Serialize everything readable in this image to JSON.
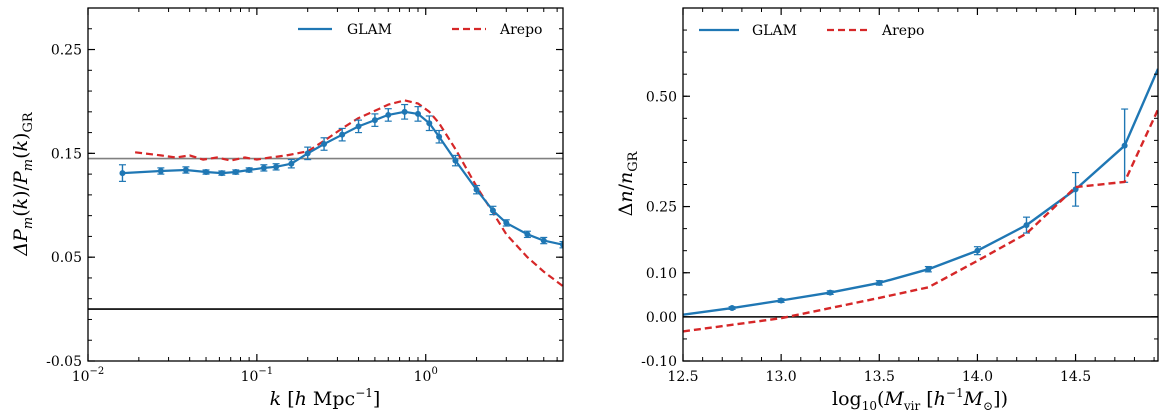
{
  "chart_data": [
    {
      "type": "line",
      "xlabel": "k [h Mpc⁻¹]",
      "xlabel_parts": [
        "k",
        "[",
        "h",
        "Mpc",
        "−1",
        "]"
      ],
      "ylabel": "ΔP_m(k)/P_m(k)_GR",
      "xscale": "log",
      "xlim": [
        0.01,
        6.5
      ],
      "ylim": [
        -0.05,
        0.29
      ],
      "xticks": [
        {
          "value": 0.01,
          "base": "10",
          "exp": "−2"
        },
        {
          "value": 0.1,
          "base": "10",
          "exp": "−1"
        },
        {
          "value": 1,
          "base": "10",
          "exp": "0"
        }
      ],
      "yticks": [
        {
          "value": -0.05,
          "label": "-0.05"
        },
        {
          "value": 0.05,
          "label": "0.05"
        },
        {
          "value": 0.15,
          "label": "0.15"
        },
        {
          "value": 0.25,
          "label": "0.25"
        }
      ],
      "legend": {
        "position": "top-right",
        "entries": [
          "GLAM",
          "Arepo"
        ]
      },
      "hlines": [
        {
          "y": 0.145,
          "color": "#808080"
        },
        {
          "y": 0.0,
          "color": "#000000"
        }
      ],
      "series": [
        {
          "name": "GLAM",
          "color": "#1f77b4",
          "style": "solid",
          "errorbars": true,
          "x": [
            0.016,
            0.027,
            0.038,
            0.05,
            0.062,
            0.075,
            0.09,
            0.11,
            0.13,
            0.16,
            0.2,
            0.25,
            0.32,
            0.4,
            0.5,
            0.6,
            0.75,
            0.9,
            1.05,
            1.2,
            1.5,
            2.0,
            2.5,
            3.0,
            4.0,
            5.0,
            6.5
          ],
          "y": [
            0.131,
            0.133,
            0.134,
            0.132,
            0.131,
            0.132,
            0.134,
            0.136,
            0.137,
            0.14,
            0.15,
            0.159,
            0.168,
            0.176,
            0.182,
            0.187,
            0.19,
            0.188,
            0.179,
            0.166,
            0.143,
            0.115,
            0.095,
            0.083,
            0.072,
            0.066,
            0.062
          ],
          "yerr": [
            0.008,
            0.003,
            0.003,
            0.002,
            0.002,
            0.002,
            0.002,
            0.003,
            0.003,
            0.004,
            0.006,
            0.006,
            0.006,
            0.006,
            0.006,
            0.006,
            0.007,
            0.007,
            0.007,
            0.006,
            0.005,
            0.004,
            0.004,
            0.003,
            0.003,
            0.003,
            0.003
          ]
        },
        {
          "name": "Arepo",
          "color": "#d62728",
          "style": "dashed",
          "x": [
            0.019,
            0.027,
            0.033,
            0.04,
            0.048,
            0.058,
            0.07,
            0.085,
            0.1,
            0.12,
            0.15,
            0.2,
            0.25,
            0.32,
            0.4,
            0.5,
            0.6,
            0.75,
            0.9,
            1.05,
            1.2,
            1.5,
            2.0,
            2.5,
            3.0,
            4.0,
            5.0,
            6.5
          ],
          "y": [
            0.151,
            0.148,
            0.146,
            0.148,
            0.144,
            0.146,
            0.143,
            0.146,
            0.144,
            0.146,
            0.148,
            0.152,
            0.162,
            0.174,
            0.184,
            0.191,
            0.197,
            0.201,
            0.198,
            0.19,
            0.179,
            0.154,
            0.118,
            0.093,
            0.072,
            0.05,
            0.036,
            0.022
          ]
        }
      ]
    },
    {
      "type": "line",
      "xlabel": "log₁₀(M_vir [h⁻¹ M_⊙])",
      "xlabel_parts": [
        "log",
        "10",
        "(",
        "M",
        "vir",
        "[",
        "h",
        "−1",
        "M",
        "⊙",
        "])"
      ],
      "ylabel": "Δn/n_GR",
      "ylabel_parts": [
        "Δ",
        "n",
        "/",
        "n",
        "GR"
      ],
      "xlim": [
        12.5,
        14.92
      ],
      "ylim": [
        -0.1,
        0.7
      ],
      "xticks": [
        {
          "value": 12.5,
          "label": "12.5"
        },
        {
          "value": 13.0,
          "label": "13.0"
        },
        {
          "value": 13.5,
          "label": "13.5"
        },
        {
          "value": 14.0,
          "label": "14.0"
        },
        {
          "value": 14.5,
          "label": "14.5"
        }
      ],
      "yticks": [
        {
          "value": -0.1,
          "label": "-0.10"
        },
        {
          "value": 0.0,
          "label": "0.00"
        },
        {
          "value": 0.1,
          "label": "0.10"
        },
        {
          "value": 0.25,
          "label": "0.25"
        },
        {
          "value": 0.5,
          "label": "0.50"
        }
      ],
      "legend": {
        "position": "top-left",
        "entries": [
          "GLAM",
          "Arepo"
        ]
      },
      "hlines": [
        {
          "y": 0.0,
          "color": "#000000"
        }
      ],
      "series": [
        {
          "name": "GLAM",
          "color": "#1f77b4",
          "style": "solid",
          "errorbars": true,
          "markers": [
            false,
            true,
            true,
            true,
            true,
            true,
            true,
            true,
            true,
            true,
            false
          ],
          "x": [
            12.5,
            12.75,
            13.0,
            13.25,
            13.5,
            13.75,
            14.0,
            14.25,
            14.5,
            14.75,
            14.92
          ],
          "y": [
            0.005,
            0.02,
            0.037,
            0.055,
            0.077,
            0.108,
            0.15,
            0.208,
            0.289,
            0.388,
            0.562
          ],
          "yerr": [
            0,
            0.003,
            0.004,
            0.004,
            0.005,
            0.006,
            0.009,
            0.018,
            0.038,
            0.083,
            0
          ]
        },
        {
          "name": "Arepo",
          "color": "#d62728",
          "style": "dashed",
          "x": [
            12.5,
            12.75,
            13.0,
            13.25,
            13.5,
            13.75,
            14.0,
            14.25,
            14.5,
            14.75,
            14.92
          ],
          "y": [
            -0.033,
            -0.018,
            -0.003,
            0.02,
            0.043,
            0.067,
            0.127,
            0.189,
            0.294,
            0.306,
            0.47
          ]
        }
      ]
    }
  ]
}
